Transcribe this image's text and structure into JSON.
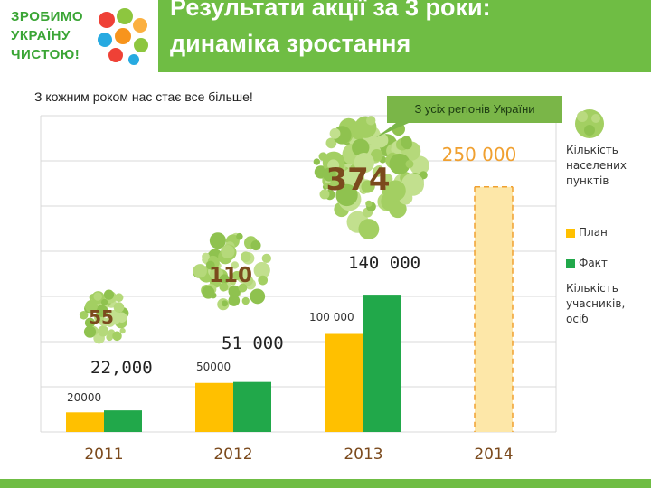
{
  "header": {
    "logo_lines": [
      "ЗРОБИМО",
      "УКРАЇНУ",
      "ЧИСТОЮ!"
    ],
    "title_line1": "Результати акції за 3 роки:",
    "title_line2": "динаміка зростання"
  },
  "subtitle": "З кожним роком нас стає все більше!",
  "callout": "З усіх регіонів України",
  "legend": {
    "settlements_label": "Кількість населених пунктів",
    "plan": "План",
    "fact": "Факт",
    "participants_label": "Кількість учасників, осіб"
  },
  "colors": {
    "plan": "#ffc000",
    "fact": "#21a84a",
    "header": "#6fbd44",
    "blob": "#a3cf62",
    "number_brown": "#7b4a1d",
    "target_orange": "#f0a030"
  },
  "chart_data": {
    "type": "bar",
    "categories": [
      "2011",
      "2012",
      "2013",
      "2014"
    ],
    "series": [
      {
        "name": "План",
        "values": [
          20000,
          50000,
          100000,
          250000
        ]
      },
      {
        "name": "Факт",
        "values": [
          22000,
          51000,
          140000,
          null
        ]
      }
    ],
    "ylim": [
      0,
      300000
    ],
    "plan_labels": [
      "20000",
      "50000",
      "100 000",
      "250 000"
    ],
    "fact_labels": [
      "22,000",
      "51 000",
      "140 000",
      ""
    ],
    "settlements": [
      {
        "year": "2011",
        "value": 55
      },
      {
        "year": "2012",
        "value": 110
      },
      {
        "year": "2013",
        "value": 374
      }
    ],
    "planned_2014_dashed": true
  }
}
